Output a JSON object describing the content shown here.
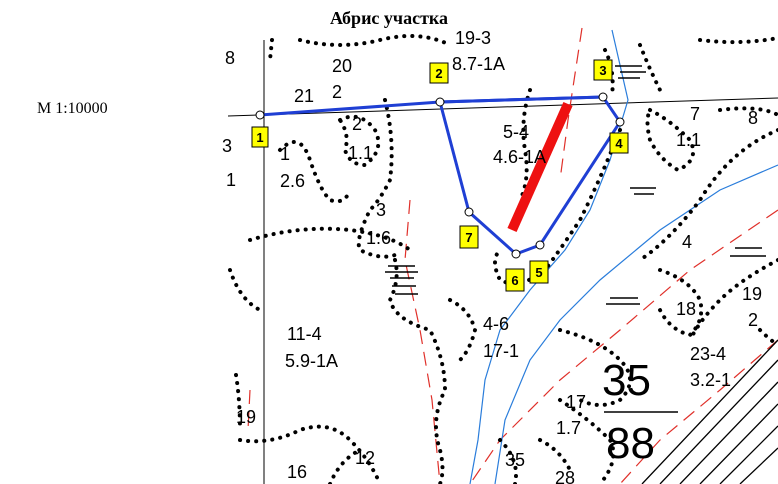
{
  "title": "Абрис участка",
  "scale": "М 1:10000",
  "colors": {
    "boundary": "#1f3fd4",
    "arrow": "#ee1111",
    "river": "#2a7ddb",
    "marker": "#ffff00"
  },
  "points": [
    {
      "num": "1"
    },
    {
      "num": "2"
    },
    {
      "num": "3"
    },
    {
      "num": "4"
    },
    {
      "num": "5"
    },
    {
      "num": "6"
    },
    {
      "num": "7"
    }
  ],
  "labels": {
    "top_a": "19-3",
    "top_b": "8.7-1А",
    "l20": "20",
    "l2a": "2",
    "l21": "21",
    "l8": "8",
    "l2b": "2",
    "l1_1a": "1.1",
    "l1": "1",
    "l2_6": "2.6",
    "l3a": "3",
    "l1_6": "1.6",
    "in_a": "5-4",
    "in_b": "4.6-1А",
    "r7": "7",
    "r1_1": "1.1",
    "r8": "8",
    "r4": "4",
    "r18": "18",
    "r19": "19",
    "r2": "2",
    "r23": "23-4",
    "r3_2": "3.2-1",
    "big35": "35",
    "big88": "88",
    "c4_6": "4-6",
    "c17_1": "17-1",
    "l11": "11-4",
    "l5_9": "5.9-1А",
    "l19": "19",
    "l16": "16",
    "l12": "12",
    "b17": "17",
    "b1_7": "1.7",
    "b35": "35",
    "b28": "28",
    "l3b": "3",
    "l1b": "1"
  }
}
